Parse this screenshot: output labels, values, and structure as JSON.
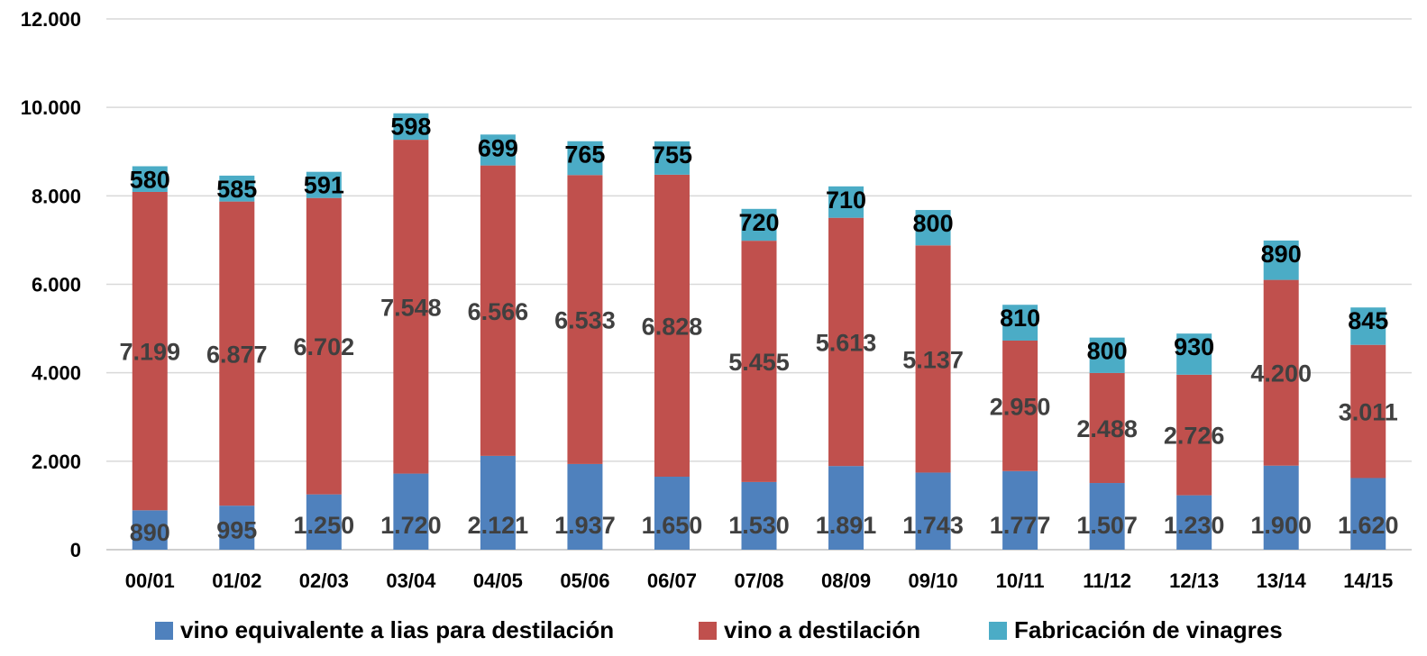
{
  "chart_data": {
    "type": "bar",
    "stacked": true,
    "categories": [
      "00/01",
      "01/02",
      "02/03",
      "03/04",
      "04/05",
      "05/06",
      "06/07",
      "07/08",
      "08/09",
      "09/10",
      "10/11",
      "11/12",
      "12/13",
      "13/14",
      "14/15"
    ],
    "series": [
      {
        "name": "vino equivalente a lias para destilación",
        "color": "#4F81BD",
        "values": [
          890,
          995,
          1250,
          1720,
          2121,
          1937,
          1650,
          1530,
          1891,
          1743,
          1777,
          1507,
          1230,
          1900,
          1620
        ],
        "labels": [
          "890",
          "995",
          "1.250",
          "1.720",
          "2.121",
          "1.937",
          "1.650",
          "1.530",
          "1.891",
          "1.743",
          "1.777",
          "1.507",
          "1.230",
          "1.900",
          "1.620"
        ]
      },
      {
        "name": "vino a destilación",
        "color": "#C0504D",
        "values": [
          7199,
          6877,
          6702,
          7548,
          6566,
          6533,
          6828,
          5455,
          5613,
          5137,
          2950,
          2488,
          2726,
          4200,
          3011
        ],
        "labels": [
          "7.199",
          "6.877",
          "6.702",
          "7.548",
          "6.566",
          "6.533",
          "6.828",
          "5.455",
          "5.613",
          "5.137",
          "2.950",
          "2.488",
          "2.726",
          "4.200",
          "3.011"
        ]
      },
      {
        "name": "Fabricación de vinagres",
        "color": "#4BACC6",
        "values": [
          580,
          585,
          591,
          598,
          699,
          765,
          755,
          720,
          710,
          800,
          810,
          800,
          930,
          890,
          845
        ],
        "labels": [
          "580",
          "585",
          "591",
          "598",
          "699",
          "765",
          "755",
          "720",
          "710",
          "800",
          "810",
          "800",
          "930",
          "890",
          "845"
        ]
      }
    ],
    "ylim": [
      0,
      12000
    ],
    "yticks": [
      0,
      2000,
      4000,
      6000,
      8000,
      10000,
      12000
    ],
    "ytick_labels": [
      "0",
      "2.000",
      "4.000",
      "6.000",
      "8.000",
      "10.000",
      "12.000"
    ],
    "grid": true,
    "legend_position": "bottom"
  }
}
